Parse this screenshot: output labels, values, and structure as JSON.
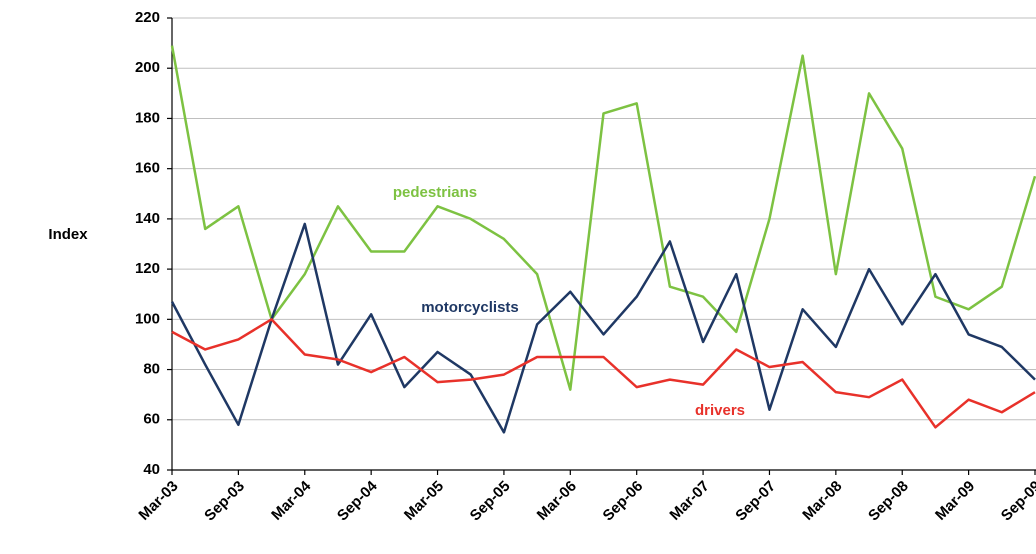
{
  "chart_data": {
    "type": "line",
    "ylabel": "Index",
    "categories": [
      "Mar-03",
      null,
      "Sep-03",
      null,
      "Mar-04",
      null,
      "Sep-04",
      null,
      "Mar-05",
      null,
      "Sep-05",
      null,
      "Mar-06",
      null,
      "Sep-06",
      null,
      "Mar-07",
      null,
      "Sep-07",
      null,
      "Mar-08",
      null,
      "Sep-08",
      null,
      "Mar-09",
      null,
      "Sep-09"
    ],
    "series": [
      {
        "name": "pedestrians",
        "color": "#7dc242",
        "values": [
          209,
          136,
          145,
          100,
          118,
          145,
          127,
          127,
          145,
          140,
          132,
          118,
          72,
          182,
          186,
          113,
          109,
          95,
          140,
          205,
          118,
          190,
          168,
          109,
          104,
          113,
          157
        ]
      },
      {
        "name": "motorcyclists",
        "color": "#1f3864",
        "values": [
          107,
          82,
          58,
          100,
          138,
          82,
          102,
          73,
          87,
          78,
          55,
          98,
          111,
          94,
          109,
          131,
          91,
          118,
          64,
          104,
          89,
          120,
          98,
          118,
          94,
          89,
          76
        ]
      },
      {
        "name": "drivers",
        "color": "#e8312a",
        "values": [
          95,
          88,
          92,
          100,
          86,
          84,
          79,
          85,
          75,
          76,
          78,
          85,
          85,
          85,
          73,
          76,
          74,
          88,
          81,
          83,
          71,
          69,
          76,
          57,
          68,
          63,
          71
        ]
      }
    ],
    "ylim": [
      40,
      220
    ],
    "yticks": [
      40,
      60,
      80,
      100,
      120,
      140,
      160,
      180,
      200,
      220
    ],
    "grid": true
  }
}
